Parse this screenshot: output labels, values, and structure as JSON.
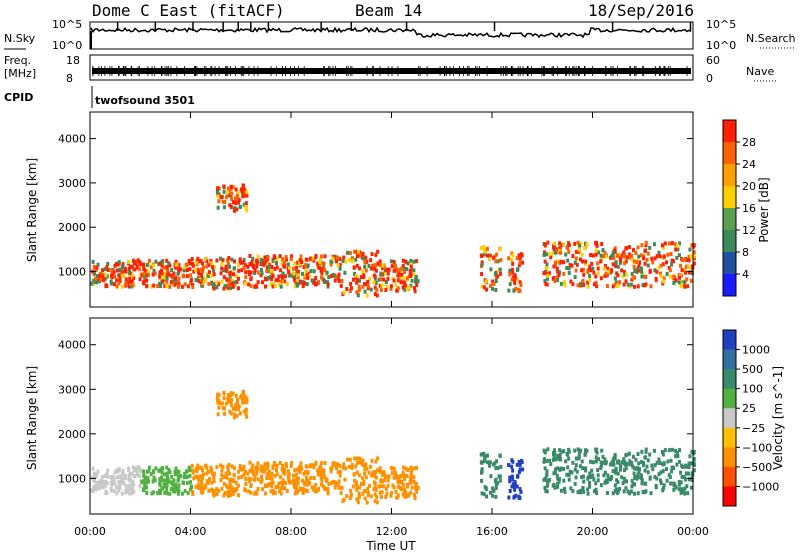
{
  "header": {
    "station": "Dome C East (fitACF)",
    "beam": "Beam 14",
    "date": "18/Sep/2016"
  },
  "noise_panel": {
    "left_label": "N.Sky",
    "right_label": "N.Search",
    "y_ticks_left": [
      "10^5",
      "10^0"
    ],
    "y_ticks_right": [
      "10^5",
      "10^0"
    ]
  },
  "freq_panel": {
    "left_label_1": "Freq.",
    "left_label_2": "[MHz]",
    "right_label": "Nave",
    "y_ticks_left": [
      "18",
      "8"
    ],
    "y_ticks_right": [
      "60",
      "0"
    ]
  },
  "cpid_panel": {
    "left_label": "CPID",
    "program": "twofsound 3501"
  },
  "colors": {
    "scale": [
      "#1a1aff",
      "#2050a0",
      "#3c8a5a",
      "#5aa050",
      "#ffd000",
      "#ffa000",
      "#ff6000",
      "#ff2000"
    ],
    "vel_scale": [
      "#2040c0",
      "#3070a0",
      "#3a8a6a",
      "#50b040",
      "#c8c8c8",
      "#ffc000",
      "#ff9000",
      "#ff5000",
      "#ff0000"
    ]
  },
  "chart_data": [
    {
      "type": "heatmap",
      "name": "Power",
      "ylabel": "Slant Range [km]",
      "yticks": [
        "1000",
        "2000",
        "3000",
        "4000"
      ],
      "ylim": [
        200,
        4600
      ],
      "colorbar_label": "Power [dB]",
      "colorbar_ticks": [
        "4",
        "8",
        "12",
        "16",
        "20",
        "24",
        "28"
      ]
    },
    {
      "type": "heatmap",
      "name": "Velocity",
      "ylabel": "Slant Range [km]",
      "yticks": [
        "1000",
        "2000",
        "3000",
        "4000"
      ],
      "ylim": [
        200,
        4600
      ],
      "colorbar_label": "Velocity [m s^-1]",
      "colorbar_ticks": [
        "1000",
        "500",
        "100",
        "25",
        "−25",
        "−100",
        "−500",
        "−1000"
      ],
      "xlabel": "Time UT",
      "xticks": [
        "00:00",
        "04:00",
        "08:00",
        "12:00",
        "16:00",
        "20:00",
        "00:00"
      ],
      "xlim": [
        0,
        24
      ]
    }
  ]
}
